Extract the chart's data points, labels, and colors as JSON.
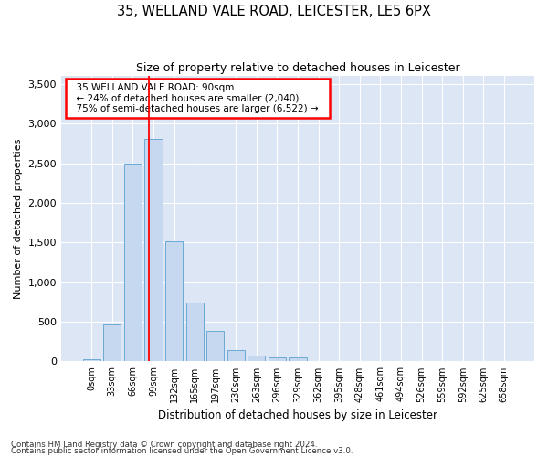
{
  "title1": "35, WELLAND VALE ROAD, LEICESTER, LE5 6PX",
  "title2": "Size of property relative to detached houses in Leicester",
  "xlabel": "Distribution of detached houses by size in Leicester",
  "ylabel": "Number of detached properties",
  "bar_color": "#c5d8ef",
  "bar_edge_color": "#6aaad4",
  "background_color": "#dce6f5",
  "grid_color": "#ffffff",
  "categories": [
    "0sqm",
    "33sqm",
    "66sqm",
    "99sqm",
    "132sqm",
    "165sqm",
    "197sqm",
    "230sqm",
    "263sqm",
    "296sqm",
    "329sqm",
    "362sqm",
    "395sqm",
    "428sqm",
    "461sqm",
    "494sqm",
    "526sqm",
    "559sqm",
    "592sqm",
    "625sqm",
    "658sqm"
  ],
  "bar_heights": [
    30,
    470,
    2500,
    2810,
    1510,
    740,
    390,
    145,
    75,
    55,
    55,
    0,
    0,
    0,
    0,
    0,
    0,
    0,
    0,
    0,
    0
  ],
  "ylim": [
    0,
    3600
  ],
  "yticks": [
    0,
    500,
    1000,
    1500,
    2000,
    2500,
    3000,
    3500
  ],
  "red_line_x": 2.78,
  "annotation_text": "  35 WELLAND VALE ROAD: 90sqm  \n  ← 24% of detached houses are smaller (2,040)  \n  75% of semi-detached houses are larger (6,522) →  ",
  "footer1": "Contains HM Land Registry data © Crown copyright and database right 2024.",
  "footer2": "Contains public sector information licensed under the Open Government Licence v3.0."
}
